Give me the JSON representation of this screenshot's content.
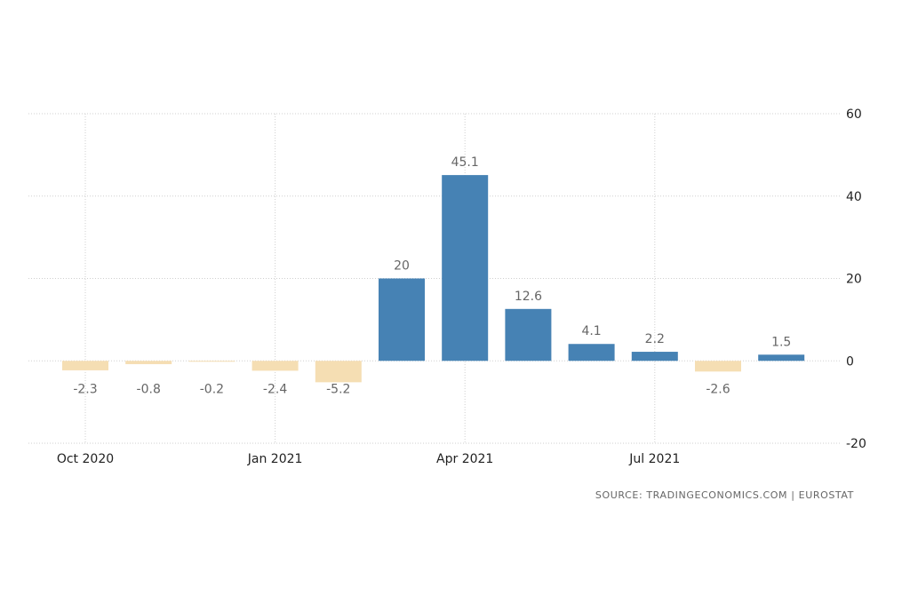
{
  "chart_data": {
    "type": "bar",
    "x": [
      "Oct 2020",
      "Nov 2020",
      "Dec 2020",
      "Jan 2021",
      "Feb 2021",
      "Mar 2021",
      "Apr 2021",
      "May 2021",
      "Jun 2021",
      "Jul 2021",
      "Aug 2021",
      "Sep 2021"
    ],
    "values": [
      -2.3,
      -0.8,
      -0.2,
      -2.4,
      -5.2,
      20,
      45.1,
      12.6,
      4.1,
      2.2,
      -2.6,
      1.5
    ],
    "data_labels": [
      "-2.3",
      "-0.8",
      "-0.2",
      "-2.4",
      "-5.2",
      "20",
      "45.1",
      "12.6",
      "4.1",
      "2.2",
      "-2.6",
      "1.5"
    ],
    "x_tick_labels": [
      "Oct 2020",
      "Jan 2021",
      "Apr 2021",
      "Jul 2021"
    ],
    "y_ticks": [
      60,
      40,
      20,
      0,
      -20
    ],
    "ylim": [
      -20,
      60
    ],
    "y_axis_side": "right",
    "grid": true,
    "colors": {
      "positive": "#4682b4",
      "negative": "#f5deb3"
    },
    "source": "SOURCE: TRADINGECONOMICS.COM  |  EUROSTAT"
  }
}
